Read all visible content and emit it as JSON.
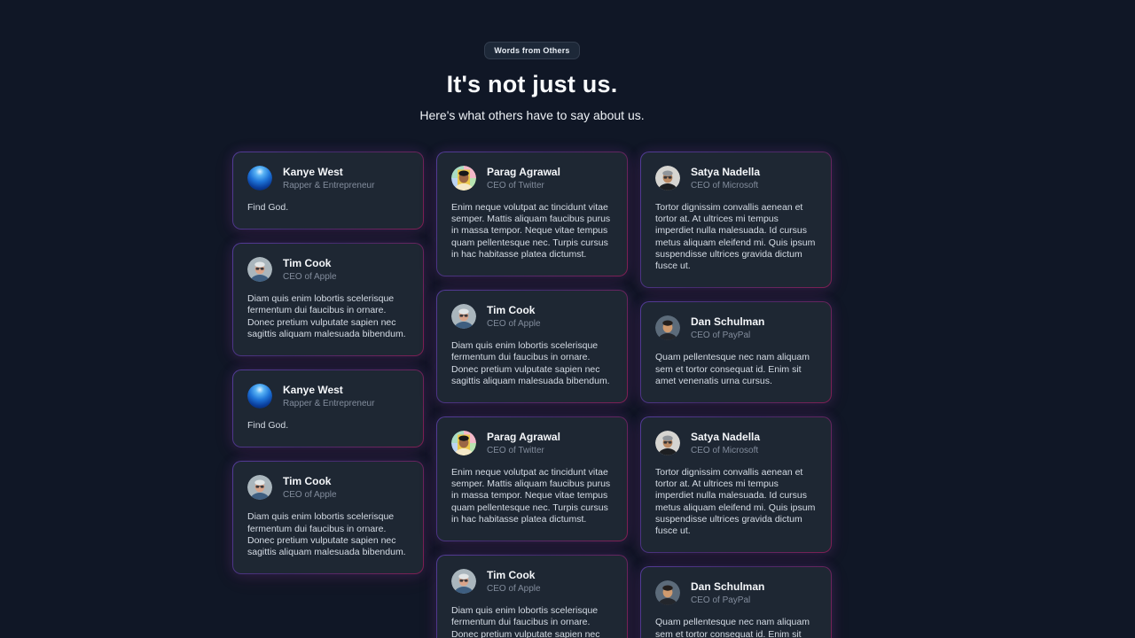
{
  "theme": {
    "page_bg": "#101726",
    "card_bg": "#1e2733",
    "badge_bg": "#1d2838",
    "glow_violet": "#8b5cf6",
    "glow_pink": "#db2777"
  },
  "header": {
    "badge": "Words from Others",
    "title": "It's not just us.",
    "subtitle": "Here's what others have to say about us."
  },
  "people": {
    "kanye": {
      "name": "Kanye West",
      "role": "Rapper & Entrepreneur",
      "quote": "Find God.",
      "avatar": {
        "type": "sphere",
        "icon_name": "blue-sphere-avatar",
        "colors": [
          "#dff3ff",
          "#5ab4f5",
          "#1e74d8",
          "#0a3d9a",
          "#041f52"
        ]
      }
    },
    "tim": {
      "name": "Tim Cook",
      "role": "CEO of Apple",
      "quote": "Diam quis enim lobortis scelerisque fermentum dui faucibus in ornare. Donec pretium vulputate sapien nec sagittis aliquam malesuada bibendum.",
      "avatar": {
        "type": "photo",
        "icon_name": "tim-cook-photo-avatar",
        "bg": "#aab6bd",
        "skin": "#d9a48a",
        "hair": "#e1e5e6",
        "shirt": "#3e5e80",
        "glasses": true
      }
    },
    "parag": {
      "name": "Parag Agrawal",
      "role": "CEO of Twitter",
      "quote": "Enim neque volutpat ac tincidunt vitae semper. Mattis aliquam faucibus purus in massa tempor. Neque vitae tempus quam pellentesque nec. Turpis cursus in hac habitasse platea dictumst.",
      "avatar": {
        "type": "cartoon",
        "icon_name": "parag-agrawal-illustrated-avatar",
        "tiles": [
          "#a9dcc3",
          "#f3b8c8",
          "#bcd4f2",
          "#b7e3b0"
        ],
        "panel": "#ecc94b",
        "skin": "#9c6644",
        "hair": "#17181a",
        "shirt": "#f5e9c8",
        "glasses": false
      }
    },
    "satya": {
      "name": "Satya Nadella",
      "role": "CEO of Microsoft",
      "quote": "Tortor dignissim convallis aenean et tortor at. At ultrices mi tempus imperdiet nulla malesuada. Id cursus metus aliquam eleifend mi. Quis ipsum suspendisse ultrices gravida dictum fusce ut.",
      "avatar": {
        "type": "photo",
        "icon_name": "satya-nadella-photo-avatar",
        "bg": "#d6d5d1",
        "skin": "#bb8a63",
        "hair": "#90959a",
        "shirt": "#1d1f22",
        "glasses": true
      }
    },
    "dan": {
      "name": "Dan Schulman",
      "role": "CEO of PayPal",
      "quote": "Quam pellentesque nec nam aliquam sem et tortor consequat id. Enim sit amet venenatis urna cursus.",
      "avatar": {
        "type": "photo",
        "icon_name": "dan-schulman-photo-avatar",
        "bg": "#5c6b7a",
        "skin": "#cf9a6e",
        "hair": "#241f1d",
        "shirt": "#23262c",
        "glasses": false
      }
    }
  },
  "columns": [
    [
      "kanye",
      "tim",
      "kanye",
      "tim"
    ],
    [
      "parag",
      "tim",
      "parag",
      "tim"
    ],
    [
      "satya",
      "dan",
      "satya",
      "dan"
    ]
  ]
}
